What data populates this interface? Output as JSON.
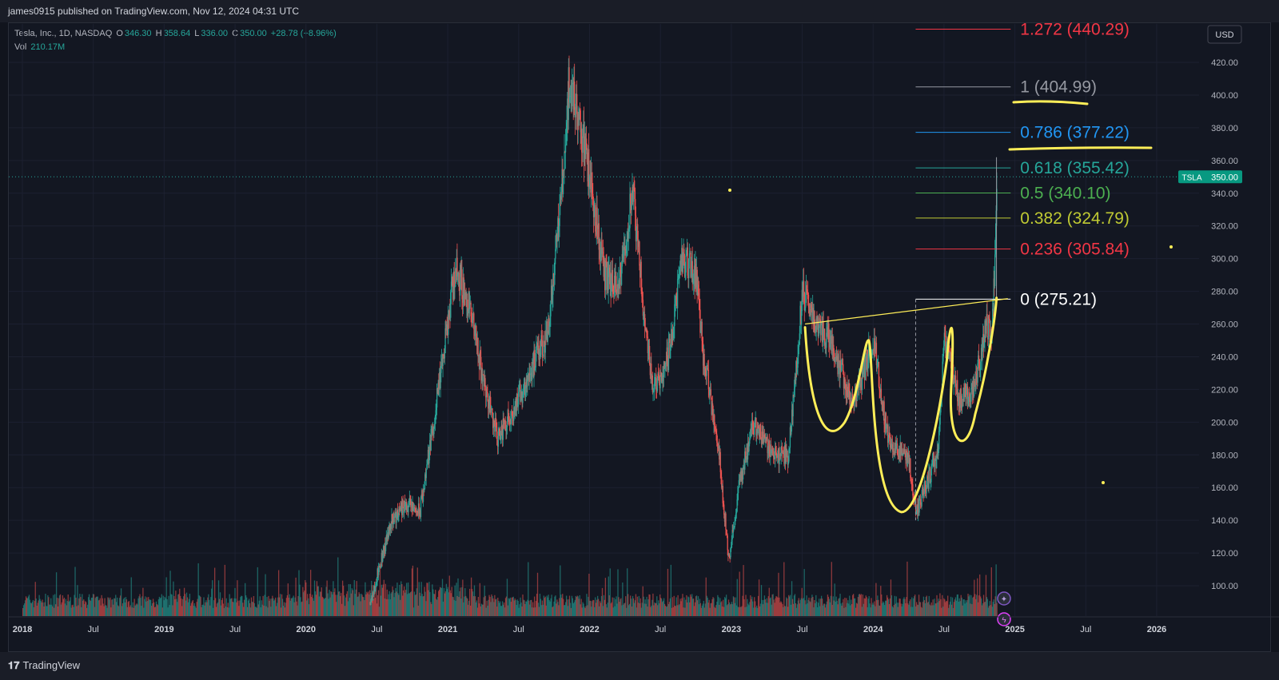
{
  "header": {
    "published": "james0915 published on TradingView.com, Nov 12, 2024 04:31 UTC"
  },
  "legend": {
    "symbol": "Tesla, Inc., 1D, NASDAQ",
    "open_label": "O",
    "open": "346.30",
    "high_label": "H",
    "high": "358.64",
    "low_label": "L",
    "low": "336.00",
    "close_label": "C",
    "close": "350.00",
    "change": "+28.78 (+8.96%)",
    "vol_label": "Vol",
    "vol": "210.17M"
  },
  "currency": "USD",
  "price_tag": {
    "ticker": "TSLA",
    "price": "350.00",
    "value": 350
  },
  "footer": {
    "brand": "TradingView"
  },
  "colors": {
    "up": "#26a69a",
    "down": "#ef5350",
    "annotation": "#ffee58",
    "fib_1272": "#f23645",
    "fib_1": "#9598a1",
    "fib_0786": "#2196f3",
    "fib_0618": "#26a69a",
    "fib_05": "#4caf50",
    "fib_0382": "#c0ca33",
    "fib_0236": "#f23645",
    "fib_0": "#ffffff"
  },
  "chart_data": {
    "type": "line",
    "symbol": "TSLA",
    "timeframe": "1D",
    "y_axis": {
      "ylim": [
        80,
        430
      ],
      "ticks": [
        100,
        120,
        140,
        160,
        180,
        200,
        220,
        240,
        260,
        280,
        300,
        320,
        340,
        360,
        380,
        400,
        420
      ]
    },
    "x_axis": {
      "xlim": [
        2017.95,
        2026.2
      ],
      "ticks": [
        {
          "label": "2018",
          "t": 2018.0
        },
        {
          "label": "Jul",
          "t": 2018.5
        },
        {
          "label": "2019",
          "t": 2019.0
        },
        {
          "label": "Jul",
          "t": 2019.5
        },
        {
          "label": "2020",
          "t": 2020.0
        },
        {
          "label": "Jul",
          "t": 2020.5
        },
        {
          "label": "2021",
          "t": 2021.0
        },
        {
          "label": "Jul",
          "t": 2021.5
        },
        {
          "label": "2022",
          "t": 2022.0
        },
        {
          "label": "Jul",
          "t": 2022.5
        },
        {
          "label": "2023",
          "t": 2023.0
        },
        {
          "label": "Jul",
          "t": 2023.5
        },
        {
          "label": "2024",
          "t": 2024.0
        },
        {
          "label": "Jul",
          "t": 2024.5
        },
        {
          "label": "2025",
          "t": 2025.0
        },
        {
          "label": "Jul",
          "t": 2025.5
        },
        {
          "label": "2026",
          "t": 2026.0
        }
      ]
    },
    "price_path": [
      [
        2020.45,
        90
      ],
      [
        2020.6,
        140
      ],
      [
        2020.7,
        150
      ],
      [
        2020.8,
        145
      ],
      [
        2020.95,
        230
      ],
      [
        2021.05,
        295
      ],
      [
        2021.15,
        270
      ],
      [
        2021.25,
        225
      ],
      [
        2021.35,
        190
      ],
      [
        2021.5,
        215
      ],
      [
        2021.7,
        255
      ],
      [
        2021.8,
        340
      ],
      [
        2021.85,
        405
      ],
      [
        2021.9,
        395
      ],
      [
        2022.0,
        350
      ],
      [
        2022.1,
        290
      ],
      [
        2022.2,
        280
      ],
      [
        2022.3,
        340
      ],
      [
        2022.4,
        250
      ],
      [
        2022.45,
        220
      ],
      [
        2022.55,
        240
      ],
      [
        2022.65,
        300
      ],
      [
        2022.75,
        290
      ],
      [
        2022.8,
        240
      ],
      [
        2022.9,
        190
      ],
      [
        2022.98,
        115
      ],
      [
        2023.05,
        160
      ],
      [
        2023.15,
        200
      ],
      [
        2023.3,
        180
      ],
      [
        2023.4,
        180
      ],
      [
        2023.5,
        280
      ],
      [
        2023.6,
        260
      ],
      [
        2023.7,
        250
      ],
      [
        2023.85,
        210
      ],
      [
        2024.0,
        250
      ],
      [
        2024.1,
        190
      ],
      [
        2024.25,
        175
      ],
      [
        2024.3,
        145
      ],
      [
        2024.45,
        180
      ],
      [
        2024.5,
        250
      ],
      [
        2024.6,
        215
      ],
      [
        2024.7,
        220
      ],
      [
        2024.8,
        260
      ],
      [
        2024.83,
        248
      ],
      [
        2024.86,
        310
      ],
      [
        2024.87,
        350
      ]
    ],
    "fib_levels": [
      {
        "ratio": "1.272",
        "price": 440.29,
        "label": "1.272 (440.29)",
        "color": "#f23645"
      },
      {
        "ratio": "1",
        "price": 404.99,
        "label": "1 (404.99)",
        "color": "#9598a1"
      },
      {
        "ratio": "0.786",
        "price": 377.22,
        "label": "0.786 (377.22)",
        "color": "#2196f3"
      },
      {
        "ratio": "0.618",
        "price": 355.42,
        "label": "0.618 (355.42)",
        "color": "#26a69a"
      },
      {
        "ratio": "0.5",
        "price": 340.1,
        "label": "0.5 (340.10)",
        "color": "#4caf50"
      },
      {
        "ratio": "0.382",
        "price": 324.79,
        "label": "0.382 (324.79)",
        "color": "#c0ca33"
      },
      {
        "ratio": "0.236",
        "price": 305.84,
        "label": "0.236 (305.84)",
        "color": "#f23645"
      },
      {
        "ratio": "0",
        "price": 275.21,
        "label": "0 (275.21)",
        "color": "#ffffff"
      }
    ],
    "last_price": 350.0,
    "grid": true,
    "legend_position": "top-left"
  }
}
